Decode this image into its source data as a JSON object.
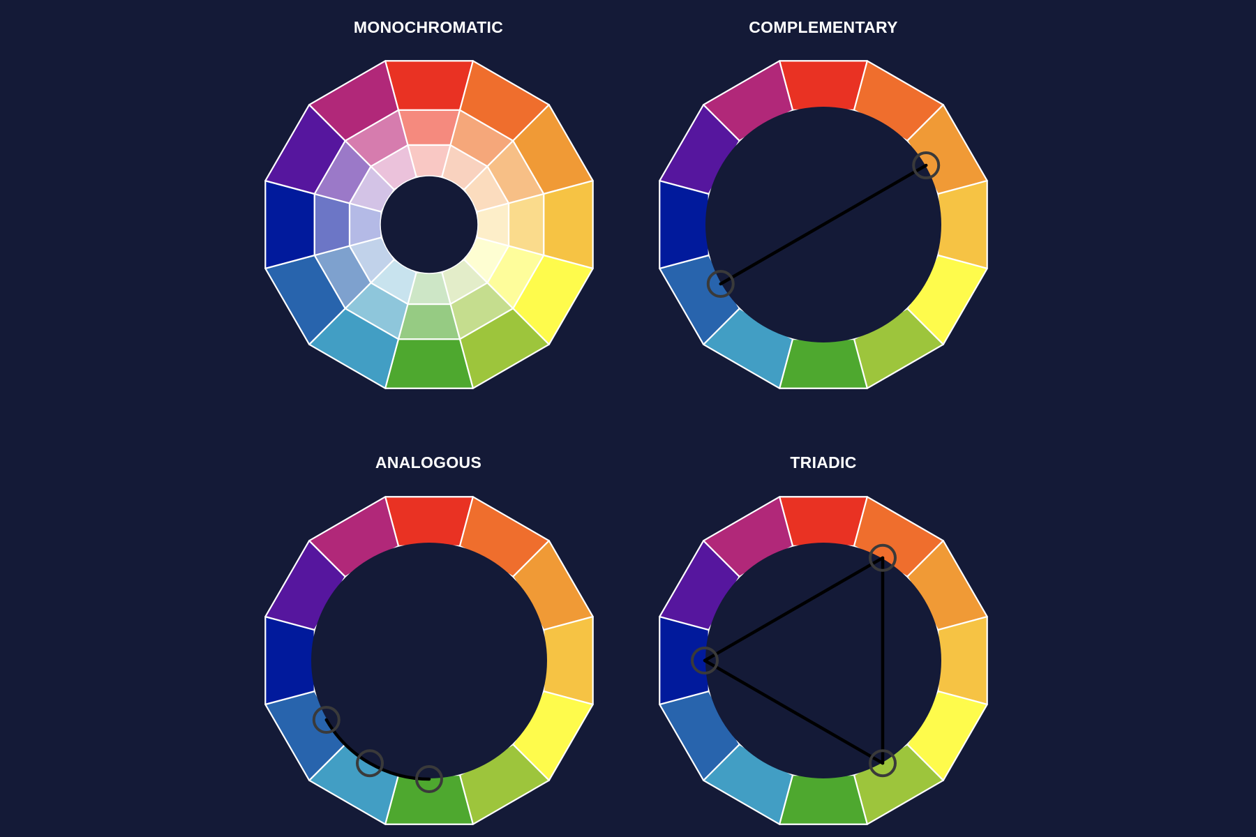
{
  "titles": {
    "monochromatic": "MONOCHROMATIC",
    "complementary": "COMPLEMENTARY",
    "analogous": "ANALOGOUS",
    "triadic": "TRIADIC"
  },
  "colors": {
    "background": "#141a37",
    "segment_border": "#ffffff",
    "marker": "#3a3a3a",
    "line": "#000000"
  },
  "wheel": {
    "hues": [
      {
        "name": "red",
        "base": "#e93223",
        "light1": "#f58a7e",
        "light2": "#f9c8c4"
      },
      {
        "name": "red-orange",
        "base": "#ef6e2d",
        "light1": "#f5a77a",
        "light2": "#f9d2bf"
      },
      {
        "name": "orange",
        "base": "#f09a36",
        "light1": "#f7bf86",
        "light2": "#fbdcbe"
      },
      {
        "name": "yellow-orange",
        "base": "#f6c344",
        "light1": "#fadb8c",
        "light2": "#fdeec9"
      },
      {
        "name": "yellow",
        "base": "#fefb4c",
        "light1": "#fefd9b",
        "light2": "#fefed2"
      },
      {
        "name": "yellow-green",
        "base": "#9dc53c",
        "light1": "#c5dd8e",
        "light2": "#e3edc9"
      },
      {
        "name": "green",
        "base": "#4ea82f",
        "light1": "#96cb83",
        "light2": "#cde6c6"
      },
      {
        "name": "blue-green",
        "base": "#429ec4",
        "light1": "#8ec6db",
        "light2": "#c8e3ee"
      },
      {
        "name": "blue",
        "base": "#2864ad",
        "light1": "#7ea1ce",
        "light2": "#c1d2ea"
      },
      {
        "name": "blue-violet",
        "base": "#011a9c",
        "light1": "#6c76c6",
        "light2": "#b4bae6"
      },
      {
        "name": "violet",
        "base": "#56169e",
        "light1": "#9b79c8",
        "light2": "#d3c3e6"
      },
      {
        "name": "red-violet",
        "base": "#b12879",
        "light1": "#d67cae",
        "light2": "#ebc2db"
      }
    ]
  },
  "harmonies": {
    "complementary": [
      "orange",
      "blue"
    ],
    "analogous": [
      "blue",
      "blue-green",
      "green"
    ],
    "triadic": [
      "red-orange",
      "yellow-green",
      "blue-violet"
    ]
  }
}
